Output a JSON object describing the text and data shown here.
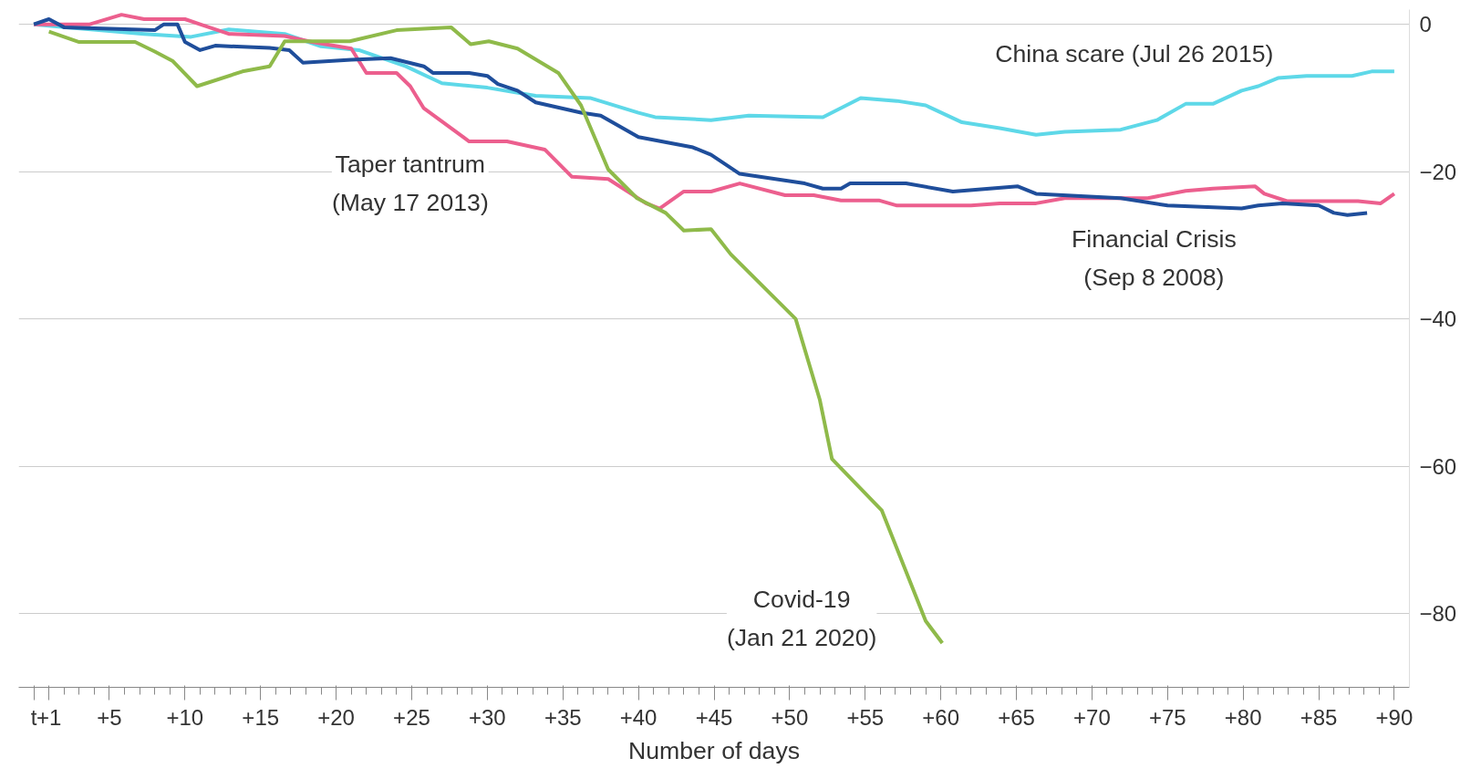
{
  "chart_data": {
    "type": "line",
    "xlabel": "Number of days",
    "xlim": [
      -1,
      91
    ],
    "ylim": [
      -90,
      2
    ],
    "xticks": [
      {
        "value": 0,
        "label": "t"
      },
      "+1",
      {
        "value": 2,
        "label": null
      },
      {
        "value": 3,
        "label": null
      },
      {
        "value": 4,
        "label": null
      },
      {
        "value": 5,
        "label": "+5"
      },
      {
        "value": 6,
        "label": null
      },
      {
        "value": 7,
        "label": null
      },
      {
        "value": 8,
        "label": null
      },
      {
        "value": 9,
        "label": null
      },
      {
        "value": 10,
        "label": "+10"
      },
      {
        "value": 11,
        "label": null
      },
      {
        "value": 12,
        "label": null
      },
      {
        "value": 13,
        "label": null
      },
      {
        "value": 14,
        "label": null
      },
      {
        "value": 15,
        "label": "+15"
      },
      {
        "value": 16,
        "label": null
      },
      {
        "value": 17,
        "label": null
      },
      {
        "value": 18,
        "label": null
      },
      {
        "value": 19,
        "label": null
      },
      {
        "value": 20,
        "label": "+20"
      },
      {
        "value": 21,
        "label": null
      },
      {
        "value": 22,
        "label": null
      },
      {
        "value": 23,
        "label": null
      },
      {
        "value": 24,
        "label": null
      },
      {
        "value": 25,
        "label": "+25"
      },
      {
        "value": 26,
        "label": null
      },
      {
        "value": 27,
        "label": null
      },
      {
        "value": 28,
        "label": null
      },
      {
        "value": 29,
        "label": null
      },
      {
        "value": 30,
        "label": "+30"
      },
      {
        "value": 31,
        "label": null
      },
      {
        "value": 32,
        "label": null
      },
      {
        "value": 33,
        "label": null
      },
      {
        "value": 34,
        "label": null
      },
      {
        "value": 35,
        "label": "+35"
      },
      {
        "value": 36,
        "label": null
      },
      {
        "value": 37,
        "label": null
      },
      {
        "value": 38,
        "label": null
      },
      {
        "value": 39,
        "label": null
      },
      {
        "value": 40,
        "label": "+40"
      },
      {
        "value": 41,
        "label": null
      },
      {
        "value": 42,
        "label": null
      },
      {
        "value": 43,
        "label": null
      },
      {
        "value": 44,
        "label": null
      },
      {
        "value": 45,
        "label": "+45"
      },
      {
        "value": 46,
        "label": null
      },
      {
        "value": 47,
        "label": null
      },
      {
        "value": 48,
        "label": null
      },
      {
        "value": 49,
        "label": null
      },
      {
        "value": 50,
        "label": "+50"
      },
      {
        "value": 51,
        "label": null
      },
      {
        "value": 52,
        "label": null
      },
      {
        "value": 53,
        "label": null
      },
      {
        "value": 54,
        "label": null
      },
      {
        "value": 55,
        "label": "+55"
      },
      {
        "value": 56,
        "label": null
      },
      {
        "value": 57,
        "label": null
      },
      {
        "value": 58,
        "label": null
      },
      {
        "value": 59,
        "label": null
      },
      {
        "value": 60,
        "label": "+60"
      },
      {
        "value": 61,
        "label": null
      },
      {
        "value": 62,
        "label": null
      },
      {
        "value": 63,
        "label": null
      },
      {
        "value": 64,
        "label": null
      },
      {
        "value": 65,
        "label": "+65"
      },
      {
        "value": 66,
        "label": null
      },
      {
        "value": 67,
        "label": null
      },
      {
        "value": 68,
        "label": null
      },
      {
        "value": 69,
        "label": null
      },
      {
        "value": 70,
        "label": "+70"
      },
      {
        "value": 71,
        "label": null
      },
      {
        "value": 72,
        "label": null
      },
      {
        "value": 73,
        "label": null
      },
      {
        "value": 74,
        "label": null
      },
      {
        "value": 75,
        "label": "+75"
      },
      {
        "value": 76,
        "label": null
      },
      {
        "value": 77,
        "label": null
      },
      {
        "value": 78,
        "label": null
      },
      {
        "value": 79,
        "label": null
      },
      {
        "value": 80,
        "label": "+80"
      },
      {
        "value": 81,
        "label": null
      },
      {
        "value": 82,
        "label": null
      },
      {
        "value": 83,
        "label": null
      },
      {
        "value": 84,
        "label": null
      },
      {
        "value": 85,
        "label": "+85"
      },
      {
        "value": 86,
        "label": null
      },
      {
        "value": 87,
        "label": null
      },
      {
        "value": 88,
        "label": null
      },
      {
        "value": 89,
        "label": null
      },
      {
        "value": 90,
        "label": "+90"
      }
    ],
    "yticks": [
      0,
      -20,
      -40,
      -60,
      -80
    ],
    "grid": "y",
    "series": [
      {
        "name": "China scare (Jul 26 2015)",
        "color": "#5ed8e8",
        "x": [
          0,
          2,
          7.3,
          10.4,
          12.9,
          16.6,
          19,
          21.5,
          24.6,
          27,
          30,
          33.2,
          36.8,
          40,
          41.1,
          44.8,
          47.3,
          52.2,
          54.7,
          57.1,
          59,
          61.4,
          63.9,
          66.3,
          68.2,
          71.9,
          74.3,
          76.2,
          78,
          79.9,
          81,
          82.3,
          84.2,
          87.2,
          88.5,
          90
        ],
        "values": [
          0,
          -0.4,
          -1.3,
          -1.7,
          -0.7,
          -1.3,
          -3,
          -3.5,
          -5.7,
          -8,
          -8.6,
          -9.7,
          -10,
          -12,
          -12.6,
          -13,
          -12.4,
          -12.6,
          -10,
          -10.4,
          -11,
          -13.3,
          -14.1,
          -15,
          -14.6,
          -14.3,
          -13,
          -10.8,
          -10.8,
          -9,
          -8.4,
          -7.3,
          -7,
          -7,
          -6.4,
          -6.4
        ]
      },
      {
        "name": "Taper tantrum\n(May 17 2013)",
        "color": "#ec5f8e",
        "x": [
          0,
          1,
          3.7,
          5.8,
          7.3,
          10,
          11,
          12.9,
          16.6,
          18.4,
          21,
          22,
          24,
          24.9,
          25.8,
          28.8,
          31.3,
          33.8,
          35.6,
          38,
          40.5,
          41.4,
          43,
          44.8,
          46.7,
          49.7,
          51.6,
          53.4,
          55.9,
          57.1,
          62,
          63.9,
          66.3,
          68.2,
          73.7,
          76.2,
          78,
          80.8,
          81.4,
          82.9,
          87.6,
          89.1,
          90
        ],
        "values": [
          0,
          0,
          0,
          1.3,
          0.7,
          0.7,
          0,
          -1.3,
          -1.6,
          -2.4,
          -3.3,
          -6.6,
          -6.6,
          -8.4,
          -11.4,
          -15.9,
          -15.9,
          -17,
          -20.7,
          -21,
          -24.3,
          -25,
          -22.7,
          -22.7,
          -21.6,
          -23.2,
          -23.2,
          -23.9,
          -23.9,
          -24.6,
          -24.6,
          -24.3,
          -24.3,
          -23.6,
          -23.6,
          -22.6,
          -22.3,
          -22,
          -23,
          -24,
          -24,
          -24.3,
          -23
        ]
      },
      {
        "name": "Financial Crisis\n(Sep 8 2008)",
        "color": "#1f4e9b",
        "x": [
          0,
          1,
          2,
          8,
          8.6,
          9.5,
          10,
          11,
          12,
          15.6,
          16.9,
          17.8,
          21,
          23.6,
          25.8,
          26.4,
          28.8,
          30,
          30.7,
          32,
          33.2,
          36.2,
          37.5,
          40,
          43.6,
          44.8,
          46.7,
          51,
          52.2,
          53.4,
          54,
          57.7,
          60.8,
          65.1,
          66.3,
          71.9,
          75,
          79.9,
          81,
          82.6,
          85,
          86,
          86.9,
          88.2
        ],
        "values": [
          0,
          0.7,
          -0.4,
          -0.8,
          0,
          0,
          -2.4,
          -3.5,
          -2.9,
          -3.2,
          -3.5,
          -5.2,
          -4.8,
          -4.6,
          -5.7,
          -6.6,
          -6.6,
          -7,
          -8.1,
          -9,
          -10.6,
          -12,
          -12.4,
          -15.3,
          -16.7,
          -17.7,
          -20.3,
          -21.6,
          -22.3,
          -22.3,
          -21.6,
          -21.6,
          -22.7,
          -22,
          -23,
          -23.6,
          -24.6,
          -25,
          -24.6,
          -24.3,
          -24.6,
          -25.6,
          -25.9,
          -25.6
        ]
      },
      {
        "name": "Covid-19\n(Jan 21 2020)",
        "color": "#8fba4a",
        "x": [
          1,
          3,
          6.7,
          8,
          9.2,
          10.8,
          13.8,
          15.6,
          16.6,
          20.9,
          24,
          27.6,
          28.9,
          30.1,
          32,
          34.7,
          36.2,
          38,
          39.9,
          41.8,
          43,
          44.8,
          46.1,
          50.4,
          52,
          52.8,
          56.1,
          59,
          60.1
        ],
        "values": [
          -1,
          -2.4,
          -2.4,
          -3.7,
          -5,
          -8.4,
          -6.4,
          -5.7,
          -2.3,
          -2.3,
          -0.8,
          -0.4,
          -2.7,
          -2.3,
          -3.3,
          -6.6,
          -11,
          -19.7,
          -23.6,
          -25.6,
          -28,
          -27.8,
          -31.2,
          -40,
          -51,
          -59,
          -66,
          -81,
          -84
        ]
      }
    ]
  }
}
